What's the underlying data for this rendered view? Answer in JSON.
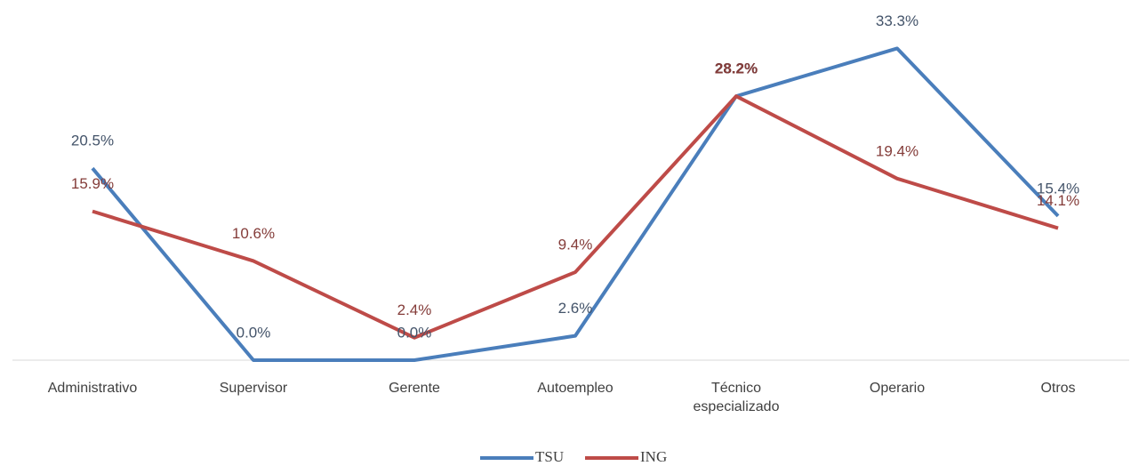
{
  "chart_data": {
    "type": "line",
    "categories": [
      "Administrativo",
      "Supervisor",
      "Gerente",
      "Autoempleo",
      "Técnico especializado",
      "Operario",
      "Otros"
    ],
    "series": [
      {
        "name": "TSU",
        "color": "#4a7ebb",
        "values": [
          20.5,
          0.0,
          0.0,
          2.6,
          28.2,
          33.3,
          15.4
        ],
        "value_labels": [
          "20.5%",
          "0.0%",
          "0.0%",
          "2.6%",
          "28.2%",
          "33.3%",
          "15.4%"
        ]
      },
      {
        "name": "ING",
        "color": "#be4b48",
        "values": [
          15.9,
          10.6,
          2.4,
          9.4,
          28.2,
          19.4,
          14.1
        ],
        "value_labels": [
          "15.9%",
          "10.6%",
          "2.4%",
          "9.4%",
          "28.2%",
          "19.4%",
          "14.1%"
        ]
      }
    ],
    "ylim": [
      0,
      38
    ],
    "legend": "bottom"
  }
}
